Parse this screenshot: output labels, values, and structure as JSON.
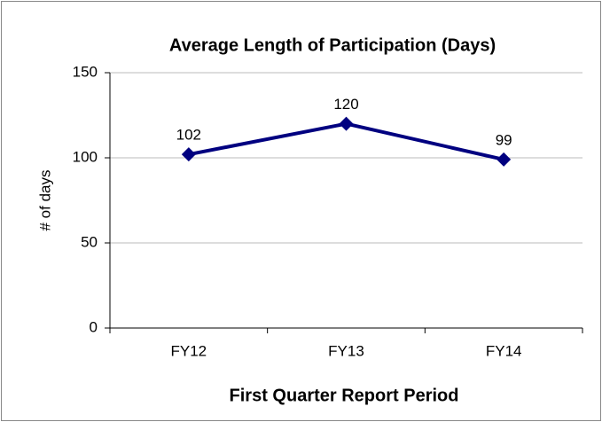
{
  "chart_data": {
    "type": "line",
    "title": "Average Length of Participation (Days)",
    "x_label": "First Quarter Report Period",
    "y_label": "# of days",
    "categories": [
      "FY12",
      "FY13",
      "FY14"
    ],
    "series": [
      {
        "name": "Average Length of Participation",
        "color": "#000080",
        "values": [
          102,
          120,
          99
        ]
      }
    ],
    "ylim": [
      0,
      150
    ],
    "yticks": [
      0,
      50,
      100,
      150
    ],
    "grid": true
  }
}
